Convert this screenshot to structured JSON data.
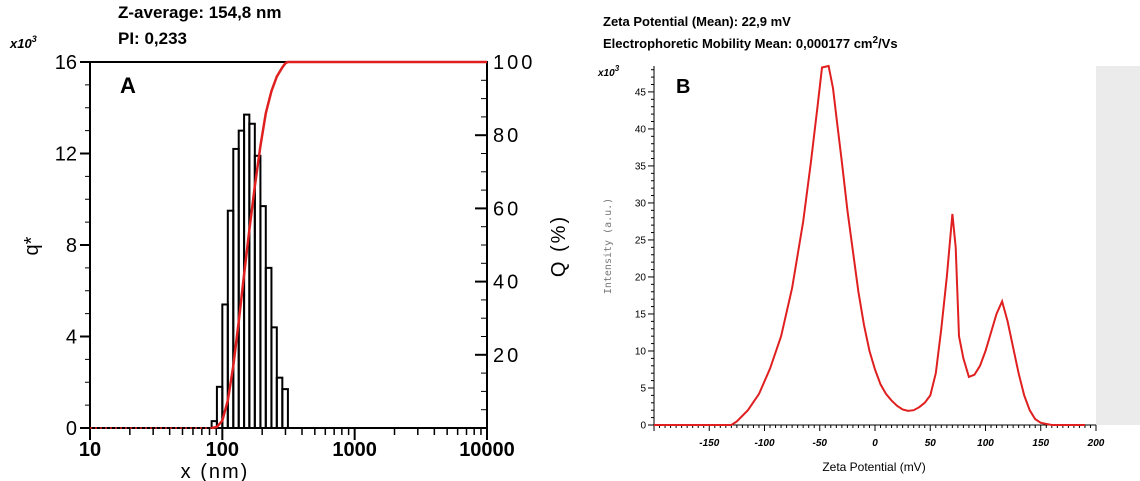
{
  "chart_data": [
    {
      "type": "bar",
      "panel_label": "A",
      "header_lines": [
        "Z-average: 154,8 nm",
        "PI: 0,233"
      ],
      "xlabel": "x (nm)",
      "ylabel": "q*",
      "ylabel_right": "Q (%)",
      "x_scale": "log",
      "xlim": [
        10,
        10000
      ],
      "ylim": [
        0,
        16
      ],
      "y_multiplier_label": "x10",
      "y_multiplier_exp": "3",
      "y2lim": [
        0,
        100
      ],
      "x_ticks": [
        10,
        100,
        1000,
        10000
      ],
      "x_tick_labels": [
        "10",
        "100",
        "1000",
        "10000"
      ],
      "y_ticks": [
        0,
        4,
        8,
        12,
        16
      ],
      "y_tick_labels": [
        "0",
        "4",
        "8",
        "12",
        "16"
      ],
      "y2_ticks": [
        20,
        40,
        60,
        80,
        100
      ],
      "y2_tick_labels": [
        "20",
        "40",
        "60",
        "80",
        "100"
      ],
      "grid": false,
      "histogram_bins": [
        {
          "x0": 83,
          "x1": 91,
          "value": 0.3
        },
        {
          "x0": 91,
          "x1": 100,
          "value": 1.8
        },
        {
          "x0": 100,
          "x1": 110,
          "value": 5.4
        },
        {
          "x0": 110,
          "x1": 121,
          "value": 9.5
        },
        {
          "x0": 121,
          "x1": 133,
          "value": 12.2
        },
        {
          "x0": 133,
          "x1": 146,
          "value": 13.0
        },
        {
          "x0": 146,
          "x1": 160,
          "value": 13.7
        },
        {
          "x0": 160,
          "x1": 176,
          "value": 13.3
        },
        {
          "x0": 176,
          "x1": 194,
          "value": 11.9
        },
        {
          "x0": 194,
          "x1": 213,
          "value": 9.7
        },
        {
          "x0": 213,
          "x1": 235,
          "value": 7.0
        },
        {
          "x0": 235,
          "x1": 258,
          "value": 4.4
        },
        {
          "x0": 258,
          "x1": 284,
          "value": 2.2
        },
        {
          "x0": 284,
          "x1": 313,
          "value": 1.7
        }
      ],
      "series": [
        {
          "color": "#e02020",
          "axis": "right",
          "x": [
            83,
            91,
            100,
            110,
            121,
            133,
            146,
            160,
            176,
            194,
            213,
            235,
            258,
            284,
            300,
            313,
            10000
          ],
          "y": [
            0,
            0.3,
            2,
            7.5,
            17,
            29,
            42,
            54,
            66,
            77,
            86,
            92,
            96,
            98.5,
            99.7,
            100,
            100
          ]
        },
        {
          "style": "dotted",
          "color": "#e02020",
          "axis": "right",
          "x": [
            10,
            83
          ],
          "y": [
            0,
            0
          ]
        }
      ]
    },
    {
      "type": "line",
      "panel_label": "B",
      "header_lines": [
        "Zeta Potential (Mean): 22,9 mV"
      ],
      "header_mobility": {
        "prefix": "Electrophoretic Mobility Mean: 0,000177 cm",
        "sup": "2",
        "suffix": "/Vs"
      },
      "xlabel": "Zeta Potential (mV)",
      "ylabel": "Intensity (a.u.)",
      "xlim": [
        -200,
        200
      ],
      "ylim": [
        0,
        48.5
      ],
      "y_multiplier_label": "x10",
      "y_multiplier_exp": "3",
      "x_ticks": [
        -150,
        -100,
        -50,
        0,
        50,
        100,
        150,
        200
      ],
      "x_tick_labels": [
        "-150",
        "-100",
        "-50",
        "0",
        "50",
        "100",
        "150",
        "200"
      ],
      "y_ticks": [
        0,
        5,
        10,
        15,
        20,
        25,
        30,
        35,
        40,
        45
      ],
      "y_tick_labels": [
        "0",
        "5",
        "10",
        "15",
        "20",
        "25",
        "30",
        "35",
        "40",
        "45"
      ],
      "grid": false,
      "series": [
        {
          "color": "#e02020",
          "x": [
            -200,
            -130,
            -125,
            -115,
            -105,
            -95,
            -85,
            -75,
            -65,
            -58,
            -52,
            -48,
            -42,
            -38,
            -34,
            -30,
            -25,
            -20,
            -15,
            -10,
            -5,
            0,
            5,
            10,
            15,
            20,
            25,
            30,
            35,
            40,
            45,
            50,
            55,
            60,
            65,
            70,
            73,
            76,
            80,
            85,
            90,
            95,
            100,
            105,
            110,
            115,
            120,
            125,
            130,
            135,
            140,
            145,
            150,
            160,
            175,
            190
          ],
          "y": [
            0,
            0,
            0.5,
            2.0,
            4.2,
            7.6,
            12.0,
            18.5,
            27.5,
            35.5,
            43.0,
            48.3,
            48.5,
            45.5,
            40.5,
            35.5,
            29.0,
            23.5,
            18.0,
            13.5,
            10.0,
            7.5,
            5.5,
            4.2,
            3.3,
            2.6,
            2.1,
            1.9,
            2.0,
            2.4,
            3.0,
            4.0,
            7.0,
            13.0,
            20.0,
            28.5,
            24.0,
            12.0,
            9.0,
            6.5,
            6.8,
            8.0,
            10.0,
            12.5,
            15.0,
            16.7,
            14.0,
            10.5,
            7.0,
            4.0,
            2.0,
            0.8,
            0.3,
            0,
            0,
            0
          ]
        }
      ]
    }
  ]
}
